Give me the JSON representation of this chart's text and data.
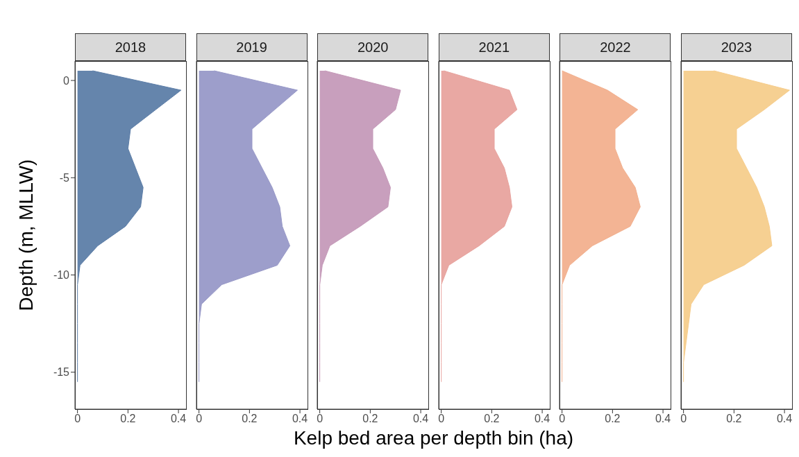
{
  "chart_data": [
    {
      "type": "area",
      "title": "2018",
      "orientation": "horizontal",
      "ylabel": "Depth (m, MLLW)",
      "xlabel": "Kelp bed area per depth bin (ha)",
      "x": [
        0.5,
        -0.5,
        -1.5,
        -2.5,
        -3.5,
        -4.5,
        -5.5,
        -6.5,
        -7.5,
        -8.5,
        -9.5,
        -10.5,
        -11.5,
        -12.5,
        -13.5,
        -14.5,
        -15.5
      ],
      "values": [
        0.06,
        0.41,
        0.31,
        0.21,
        0.2,
        0.23,
        0.26,
        0.25,
        0.19,
        0.08,
        0.01,
        0,
        0,
        0,
        0,
        0,
        0
      ],
      "color": "#5d7ea8",
      "xlim": [
        -0.01,
        0.43
      ],
      "xticks": [
        0,
        0.2,
        0.4
      ],
      "ylim": [
        -16.9,
        1
      ],
      "yticks": [
        0,
        -5,
        -10,
        -15
      ],
      "grid": false
    },
    {
      "type": "area",
      "title": "2019",
      "orientation": "horizontal",
      "tick_labels": "x",
      "x": [
        0.5,
        -0.5,
        -1.5,
        -2.5,
        -3.5,
        -4.5,
        -5.5,
        -6.5,
        -7.5,
        -8.5,
        -9.5,
        -10.5,
        -11.5,
        -12.5,
        -13.5,
        -14.5,
        -15.5
      ],
      "values": [
        0.06,
        0.39,
        0.3,
        0.21,
        0.21,
        0.25,
        0.29,
        0.32,
        0.33,
        0.36,
        0.31,
        0.09,
        0.01,
        0,
        0,
        0,
        0
      ],
      "color": "#9899c8",
      "xlim": [
        -0.01,
        0.43
      ],
      "xticks": [
        0,
        0.2,
        0.4
      ],
      "ylim": [
        -16.9,
        1
      ],
      "yticks": [
        0,
        -5,
        -10,
        -15
      ],
      "grid": false
    },
    {
      "type": "area",
      "title": "2020",
      "orientation": "horizontal",
      "tick_labels": "x",
      "x": [
        0.5,
        -0.5,
        -1.5,
        -2.5,
        -3.5,
        -4.5,
        -5.5,
        -6.5,
        -7.5,
        -8.5,
        -9.5,
        -10.5,
        -11.5,
        -12.5,
        -13.5,
        -14.5,
        -15.5
      ],
      "values": [
        0.02,
        0.32,
        0.3,
        0.21,
        0.21,
        0.25,
        0.28,
        0.27,
        0.16,
        0.04,
        0.01,
        0,
        0,
        0,
        0,
        0,
        0
      ],
      "color": "#c59ab9",
      "xlim": [
        -0.01,
        0.43
      ],
      "xticks": [
        0,
        0.2,
        0.4
      ],
      "ylim": [
        -16.9,
        1
      ],
      "yticks": [
        0,
        -5,
        -10,
        -15
      ],
      "grid": false
    },
    {
      "type": "area",
      "title": "2021",
      "orientation": "horizontal",
      "tick_labels": "x",
      "x": [
        0.5,
        -0.5,
        -1.5,
        -2.5,
        -3.5,
        -4.5,
        -5.5,
        -6.5,
        -7.5,
        -8.5,
        -9.5,
        -10.5,
        -11.5,
        -12.5,
        -13.5,
        -14.5,
        -15.5
      ],
      "values": [
        0.01,
        0.27,
        0.3,
        0.21,
        0.21,
        0.25,
        0.27,
        0.28,
        0.25,
        0.15,
        0.03,
        0,
        0,
        0,
        0,
        0,
        0
      ],
      "color": "#e8a39e",
      "xlim": [
        -0.01,
        0.43
      ],
      "xticks": [
        0,
        0.2,
        0.4
      ],
      "ylim": [
        -16.9,
        1
      ],
      "yticks": [
        0,
        -5,
        -10,
        -15
      ],
      "grid": false
    },
    {
      "type": "area",
      "title": "2022",
      "orientation": "horizontal",
      "tick_labels": "x",
      "x": [
        0.5,
        -0.5,
        -1.5,
        -2.5,
        -3.5,
        -4.5,
        -5.5,
        -6.5,
        -7.5,
        -8.5,
        -9.5,
        -10.5,
        -11.5,
        -12.5,
        -13.5,
        -14.5,
        -15.5
      ],
      "values": [
        0,
        0.18,
        0.3,
        0.21,
        0.21,
        0.24,
        0.29,
        0.31,
        0.27,
        0.12,
        0.03,
        0,
        0,
        0,
        0,
        0,
        0
      ],
      "color": "#f2b08e",
      "xlim": [
        -0.01,
        0.43
      ],
      "xticks": [
        0,
        0.2,
        0.4
      ],
      "ylim": [
        -16.9,
        1
      ],
      "yticks": [
        0,
        -5,
        -10,
        -15
      ],
      "grid": false
    },
    {
      "type": "area",
      "title": "2023",
      "orientation": "horizontal",
      "tick_labels": "x",
      "x": [
        0.5,
        -0.5,
        -1.5,
        -2.5,
        -3.5,
        -4.5,
        -5.5,
        -6.5,
        -7.5,
        -8.5,
        -9.5,
        -10.5,
        -11.5,
        -12.5,
        -13.5,
        -14.5,
        -15.5
      ],
      "values": [
        0.12,
        0.42,
        0.32,
        0.21,
        0.21,
        0.25,
        0.29,
        0.32,
        0.34,
        0.35,
        0.24,
        0.08,
        0.03,
        0.02,
        0.01,
        0,
        0
      ],
      "color": "#f6cd8c",
      "xlim": [
        -0.01,
        0.43
      ],
      "xticks": [
        0,
        0.2,
        0.4
      ],
      "ylim": [
        -16.9,
        1
      ],
      "yticks": [
        0,
        -5,
        -10,
        -15
      ],
      "grid": false
    }
  ]
}
